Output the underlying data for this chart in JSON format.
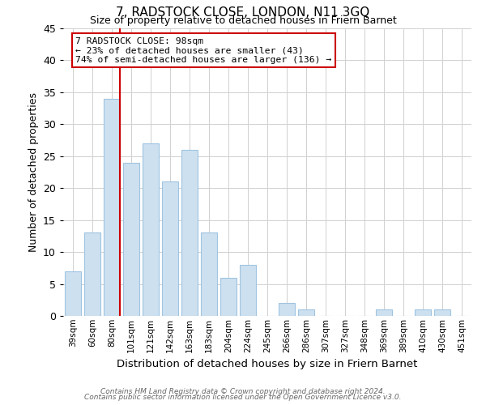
{
  "title": "7, RADSTOCK CLOSE, LONDON, N11 3GQ",
  "subtitle": "Size of property relative to detached houses in Friern Barnet",
  "xlabel": "Distribution of detached houses by size in Friern Barnet",
  "ylabel": "Number of detached properties",
  "bin_labels": [
    "39sqm",
    "60sqm",
    "80sqm",
    "101sqm",
    "121sqm",
    "142sqm",
    "163sqm",
    "183sqm",
    "204sqm",
    "224sqm",
    "245sqm",
    "266sqm",
    "286sqm",
    "307sqm",
    "327sqm",
    "348sqm",
    "369sqm",
    "389sqm",
    "410sqm",
    "430sqm",
    "451sqm"
  ],
  "bar_values": [
    7,
    13,
    34,
    24,
    27,
    21,
    26,
    13,
    6,
    8,
    0,
    2,
    1,
    0,
    0,
    0,
    1,
    0,
    1,
    1,
    0
  ],
  "bar_color": "#cce0f0",
  "bar_edgecolor": "#a0c4e0",
  "vline_color": "#cc0000",
  "annotation_title": "7 RADSTOCK CLOSE: 98sqm",
  "annotation_line1": "← 23% of detached houses are smaller (43)",
  "annotation_line2": "74% of semi-detached houses are larger (136) →",
  "annotation_box_edgecolor": "#cc0000",
  "ylim": [
    0,
    45
  ],
  "yticks": [
    0,
    5,
    10,
    15,
    20,
    25,
    30,
    35,
    40,
    45
  ],
  "footer1": "Contains HM Land Registry data © Crown copyright and database right 2024.",
  "footer2": "Contains public sector information licensed under the Open Government Licence v3.0.",
  "figsize": [
    6.0,
    5.0
  ],
  "dpi": 100
}
